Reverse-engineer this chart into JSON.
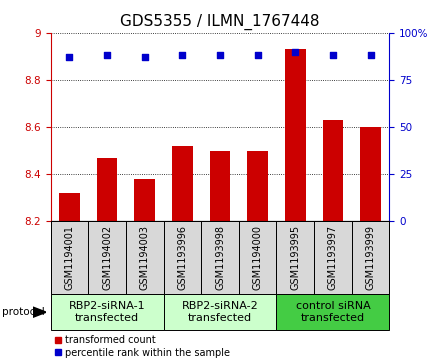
{
  "title": "GDS5355 / ILMN_1767448",
  "samples": [
    "GSM1194001",
    "GSM1194002",
    "GSM1194003",
    "GSM1193996",
    "GSM1193998",
    "GSM1194000",
    "GSM1193995",
    "GSM1193997",
    "GSM1193999"
  ],
  "bar_values": [
    8.32,
    8.47,
    8.38,
    8.52,
    8.5,
    8.5,
    8.93,
    8.63,
    8.6
  ],
  "percentile_values": [
    87,
    88,
    87,
    88,
    88,
    88,
    90,
    88,
    88
  ],
  "ylim_left": [
    8.2,
    9.0
  ],
  "ylim_right": [
    0,
    100
  ],
  "yticks_left": [
    8.2,
    8.4,
    8.6,
    8.8,
    9.0
  ],
  "yticks_right": [
    0,
    25,
    50,
    75,
    100
  ],
  "bar_color": "#cc0000",
  "dot_color": "#0000cc",
  "bar_bottom": 8.2,
  "groups": [
    {
      "label": "RBP2-siRNA-1\ntransfected",
      "start": 0,
      "end": 3,
      "color": "#ccffcc"
    },
    {
      "label": "RBP2-siRNA-2\ntransfected",
      "start": 3,
      "end": 6,
      "color": "#ccffcc"
    },
    {
      "label": "control siRNA\ntransfected",
      "start": 6,
      "end": 9,
      "color": "#44cc44"
    }
  ],
  "legend_items": [
    {
      "color": "#cc0000",
      "label": "transformed count"
    },
    {
      "color": "#0000cc",
      "label": "percentile rank within the sample"
    }
  ],
  "protocol_label": "protocol",
  "bg_color": "#d8d8d8",
  "title_fontsize": 11,
  "tick_fontsize": 7.5,
  "sample_fontsize": 7,
  "group_fontsize": 8
}
